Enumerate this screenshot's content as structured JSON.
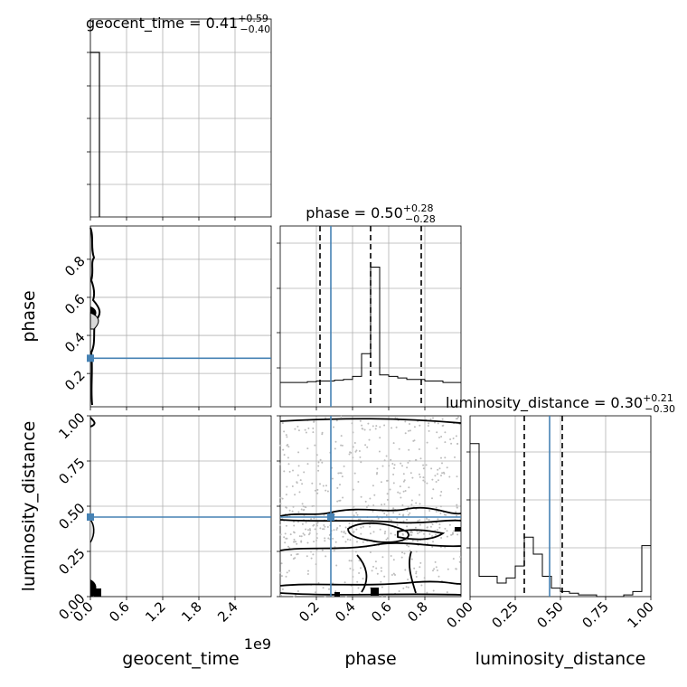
{
  "chart_data": {
    "type": "corner",
    "parameters": [
      "geocent_time",
      "phase",
      "luminosity_distance"
    ],
    "injection_color": "#4682b4",
    "diagonal": [
      {
        "parameter": "geocent_time",
        "title": {
          "name": "geocent_time",
          "median": "0.41",
          "upper": "+0.59",
          "lower": "−0.40"
        },
        "x_range": [
          0,
          3000000000
        ],
        "bin_edges": [
          0,
          150000000
        ],
        "counts": [
          1.0
        ],
        "quantiles": [],
        "injection": null
      },
      {
        "parameter": "phase",
        "title": {
          "name": "phase",
          "median": "0.50",
          "upper": "+0.28",
          "lower": "−0.28"
        },
        "x_range": [
          0,
          1
        ],
        "bin_edges": [
          0,
          0.05,
          0.1,
          0.15,
          0.2,
          0.25,
          0.3,
          0.35,
          0.4,
          0.45,
          0.5,
          0.55,
          0.6,
          0.65,
          0.7,
          0.75,
          0.8,
          0.85,
          0.9,
          0.95,
          1.0
        ],
        "counts": [
          0.16,
          0.16,
          0.16,
          0.165,
          0.17,
          0.17,
          0.175,
          0.18,
          0.2,
          0.35,
          0.92,
          0.21,
          0.2,
          0.19,
          0.18,
          0.18,
          0.17,
          0.17,
          0.16,
          0.16
        ],
        "quantiles": [
          0.22,
          0.5,
          0.78
        ],
        "injection": 0.28
      },
      {
        "parameter": "luminosity_distance",
        "title": {
          "name": "luminosity_distance",
          "median": "0.30",
          "upper": "+0.21",
          "lower": "−0.30"
        },
        "x_range": [
          0,
          1
        ],
        "bin_edges": [
          0,
          0.05,
          0.1,
          0.15,
          0.2,
          0.25,
          0.3,
          0.35,
          0.4,
          0.45,
          0.5,
          0.55,
          0.6,
          0.65,
          0.7,
          0.75,
          0.8,
          0.85,
          0.9,
          0.95,
          1.0
        ],
        "counts": [
          0.9,
          0.12,
          0.12,
          0.08,
          0.11,
          0.18,
          0.35,
          0.25,
          0.12,
          0.05,
          0.03,
          0.02,
          0.01,
          0.01,
          0.0,
          0.0,
          0.0,
          0.01,
          0.03,
          0.3
        ],
        "quantiles": [
          0.3,
          0.51
        ],
        "injection": 0.44
      }
    ],
    "panels_2d": [
      {
        "x": "geocent_time",
        "y": "phase",
        "injection": {
          "x": 0,
          "y": 0.28
        }
      },
      {
        "x": "geocent_time",
        "y": "luminosity_distance",
        "injection": {
          "x": 0,
          "y": 0.44
        }
      },
      {
        "x": "phase",
        "y": "luminosity_distance",
        "injection": {
          "x": 0.28,
          "y": 0.44
        }
      }
    ],
    "x_axes": {
      "geocent_time": {
        "ticks": [
          "0.0",
          "0.6",
          "1.2",
          "1.8",
          "2.4"
        ],
        "label": "geocent_time",
        "multiplier": "1e9"
      },
      "phase": {
        "ticks": [
          "0.2",
          "0.4",
          "0.6",
          "0.8"
        ],
        "label": "phase"
      },
      "luminosity_distance": {
        "ticks": [
          "0.00",
          "0.25",
          "0.50",
          "0.75",
          "1.00"
        ],
        "label": "luminosity_distance"
      }
    },
    "y_axes": {
      "phase": {
        "ticks": [
          "0.2",
          "0.4",
          "0.6",
          "0.8"
        ],
        "label": "phase"
      },
      "luminosity_distance": {
        "ticks": [
          "0.00",
          "0.25",
          "0.50",
          "0.75",
          "1.00"
        ],
        "label": "luminosity_distance"
      }
    },
    "grid": true
  }
}
